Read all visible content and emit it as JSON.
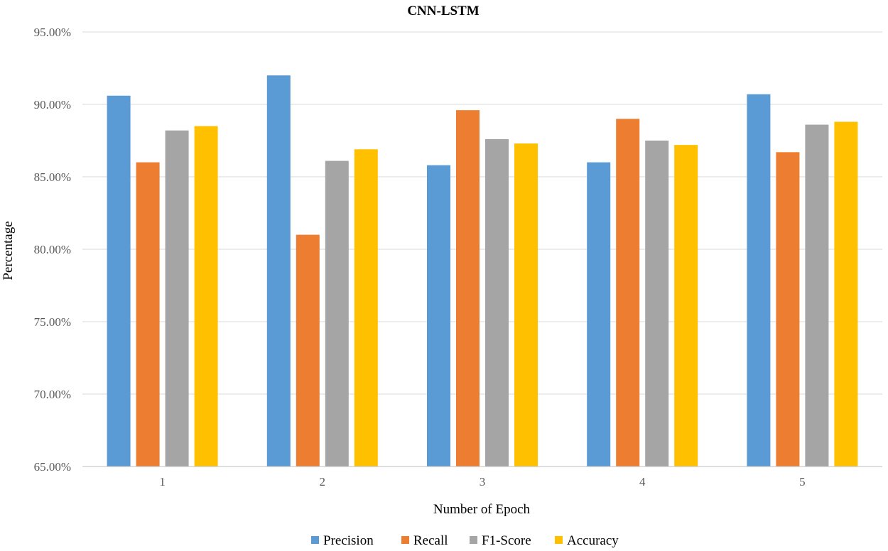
{
  "chart_data": {
    "type": "bar",
    "title": "CNN-LSTM",
    "xlabel": "Number of Epoch",
    "ylabel": "Percentage",
    "categories": [
      "1",
      "2",
      "3",
      "4",
      "5"
    ],
    "ylim": [
      65,
      95
    ],
    "yticks": [
      "65.00%",
      "70.00%",
      "75.00%",
      "80.00%",
      "85.00%",
      "90.00%",
      "95.00%"
    ],
    "ytick_values": [
      65,
      70,
      75,
      80,
      85,
      90,
      95
    ],
    "grid": true,
    "legend_position": "bottom",
    "series": [
      {
        "name": "Precision",
        "color": "#5b9bd5",
        "values": [
          90.6,
          92.0,
          85.8,
          86.0,
          90.7
        ]
      },
      {
        "name": "Recall",
        "color": "#ed7d31",
        "values": [
          86.0,
          81.0,
          89.6,
          89.0,
          86.7
        ]
      },
      {
        "name": "F1-Score",
        "color": "#a5a5a5",
        "values": [
          88.2,
          86.1,
          87.6,
          87.5,
          88.6
        ]
      },
      {
        "name": "Accuracy",
        "color": "#ffc000",
        "values": [
          88.5,
          86.9,
          87.3,
          87.2,
          88.8
        ]
      }
    ]
  }
}
